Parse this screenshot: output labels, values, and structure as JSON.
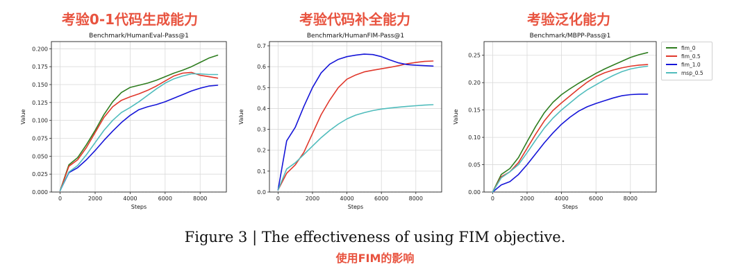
{
  "figure": {
    "caption": "Figure 3 | The effectiveness of using FIM objective.",
    "caption_cn": "使用FIM的影响"
  },
  "legend": [
    {
      "name": "fim_0",
      "color": "#2e7d1f"
    },
    {
      "name": "fim_0.5",
      "color": "#e0372b"
    },
    {
      "name": "fim_1.0",
      "color": "#1515d8"
    },
    {
      "name": "msp_0.5",
      "color": "#4fbcbc"
    }
  ],
  "chart_data": [
    {
      "type": "line",
      "cn_title": "考验0-1代码生成能力",
      "title": "Benchmark/HumanEval-Pass@1",
      "xlabel": "Steps",
      "ylabel": "Value",
      "xlim": [
        -500,
        9500
      ],
      "ylim": [
        0,
        0.21
      ],
      "xticks": [
        0,
        2000,
        4000,
        6000,
        8000
      ],
      "yticks": [
        0.0,
        0.025,
        0.05,
        0.075,
        0.1,
        0.125,
        0.15,
        0.175,
        0.2
      ],
      "ytick_labels": [
        "0.000",
        "0.025",
        "0.050",
        "0.075",
        "0.100",
        "0.125",
        "0.150",
        "0.175",
        "0.200"
      ],
      "grid": true,
      "x": [
        0,
        500,
        1000,
        1500,
        2000,
        2500,
        3000,
        3500,
        4000,
        4500,
        5000,
        5500,
        6000,
        6500,
        7000,
        7500,
        8000,
        8500,
        9000
      ],
      "series": [
        {
          "name": "fim_0",
          "values": [
            0.002,
            0.038,
            0.048,
            0.066,
            0.086,
            0.108,
            0.126,
            0.139,
            0.146,
            0.149,
            0.152,
            0.156,
            0.161,
            0.166,
            0.17,
            0.175,
            0.181,
            0.187,
            0.191
          ]
        },
        {
          "name": "fim_0.5",
          "values": [
            0.002,
            0.036,
            0.045,
            0.062,
            0.083,
            0.104,
            0.119,
            0.128,
            0.133,
            0.137,
            0.142,
            0.148,
            0.155,
            0.162,
            0.166,
            0.167,
            0.163,
            0.161,
            0.159
          ]
        },
        {
          "name": "fim_1.0",
          "values": [
            0.002,
            0.027,
            0.034,
            0.045,
            0.058,
            0.072,
            0.085,
            0.097,
            0.107,
            0.115,
            0.119,
            0.122,
            0.126,
            0.131,
            0.136,
            0.141,
            0.145,
            0.148,
            0.149
          ]
        },
        {
          "name": "msp_0.5",
          "values": [
            0.002,
            0.028,
            0.037,
            0.052,
            0.069,
            0.086,
            0.1,
            0.111,
            0.118,
            0.126,
            0.135,
            0.144,
            0.152,
            0.158,
            0.162,
            0.165,
            0.165,
            0.164,
            0.164
          ]
        }
      ]
    },
    {
      "type": "line",
      "cn_title": "考验代码补全能力",
      "title": "Benchmark/HumanFIM-Pass@1",
      "xlabel": "Steps",
      "ylabel": "Value",
      "xlim": [
        -500,
        9500
      ],
      "ylim": [
        0,
        0.72
      ],
      "xticks": [
        0,
        2000,
        4000,
        6000,
        8000
      ],
      "yticks": [
        0.0,
        0.1,
        0.2,
        0.3,
        0.4,
        0.5,
        0.6,
        0.7
      ],
      "ytick_labels": [
        "0.0",
        "0.1",
        "0.2",
        "0.3",
        "0.4",
        "0.5",
        "0.6",
        "0.7"
      ],
      "grid": true,
      "x": [
        0,
        500,
        1000,
        1500,
        2000,
        2500,
        3000,
        3500,
        4000,
        4500,
        5000,
        5500,
        6000,
        6500,
        7000,
        7500,
        8000,
        8500,
        9000
      ],
      "series": [
        {
          "name": "fim_0.5",
          "values": [
            0.01,
            0.09,
            0.13,
            0.19,
            0.28,
            0.37,
            0.44,
            0.5,
            0.54,
            0.56,
            0.575,
            0.583,
            0.59,
            0.597,
            0.605,
            0.614,
            0.62,
            0.625,
            0.627
          ]
        },
        {
          "name": "fim_1.0",
          "values": [
            0.01,
            0.245,
            0.31,
            0.41,
            0.5,
            0.57,
            0.612,
            0.635,
            0.648,
            0.655,
            0.66,
            0.658,
            0.648,
            0.632,
            0.618,
            0.61,
            0.607,
            0.605,
            0.603
          ]
        },
        {
          "name": "msp_0.5",
          "values": [
            0.01,
            0.11,
            0.14,
            0.18,
            0.22,
            0.26,
            0.295,
            0.325,
            0.35,
            0.368,
            0.38,
            0.39,
            0.397,
            0.402,
            0.406,
            0.41,
            0.413,
            0.416,
            0.418
          ]
        }
      ]
    },
    {
      "type": "line",
      "cn_title": "考验泛化能力",
      "title": "Benchmark/MBPP-Pass@1",
      "xlabel": "Steps",
      "ylabel": "Value",
      "xlim": [
        -500,
        9500
      ],
      "ylim": [
        0,
        0.275
      ],
      "xticks": [
        0,
        2000,
        4000,
        6000,
        8000
      ],
      "yticks": [
        0.0,
        0.05,
        0.1,
        0.15,
        0.2,
        0.25
      ],
      "ytick_labels": [
        "0.00",
        "0.05",
        "0.10",
        "0.15",
        "0.20",
        "0.25"
      ],
      "grid": true,
      "x": [
        0,
        500,
        1000,
        1500,
        2000,
        2500,
        3000,
        3500,
        4000,
        4500,
        5000,
        5500,
        6000,
        6500,
        7000,
        7500,
        8000,
        8500,
        9000
      ],
      "series": [
        {
          "name": "fim_0",
          "values": [
            0.0,
            0.032,
            0.043,
            0.063,
            0.092,
            0.12,
            0.145,
            0.164,
            0.178,
            0.189,
            0.199,
            0.208,
            0.217,
            0.225,
            0.232,
            0.239,
            0.246,
            0.251,
            0.255
          ]
        },
        {
          "name": "fim_0.5",
          "values": [
            0.0,
            0.028,
            0.037,
            0.054,
            0.08,
            0.106,
            0.13,
            0.149,
            0.163,
            0.176,
            0.189,
            0.201,
            0.211,
            0.218,
            0.223,
            0.227,
            0.23,
            0.232,
            0.233
          ]
        },
        {
          "name": "fim_1.0",
          "values": [
            0.0,
            0.013,
            0.019,
            0.032,
            0.05,
            0.07,
            0.09,
            0.108,
            0.124,
            0.137,
            0.148,
            0.156,
            0.162,
            0.167,
            0.172,
            0.176,
            0.178,
            0.179,
            0.179
          ]
        },
        {
          "name": "msp_0.5",
          "values": [
            0.0,
            0.026,
            0.037,
            0.05,
            0.072,
            0.095,
            0.117,
            0.135,
            0.15,
            0.163,
            0.176,
            0.187,
            0.196,
            0.205,
            0.213,
            0.22,
            0.225,
            0.228,
            0.23
          ]
        }
      ]
    }
  ]
}
